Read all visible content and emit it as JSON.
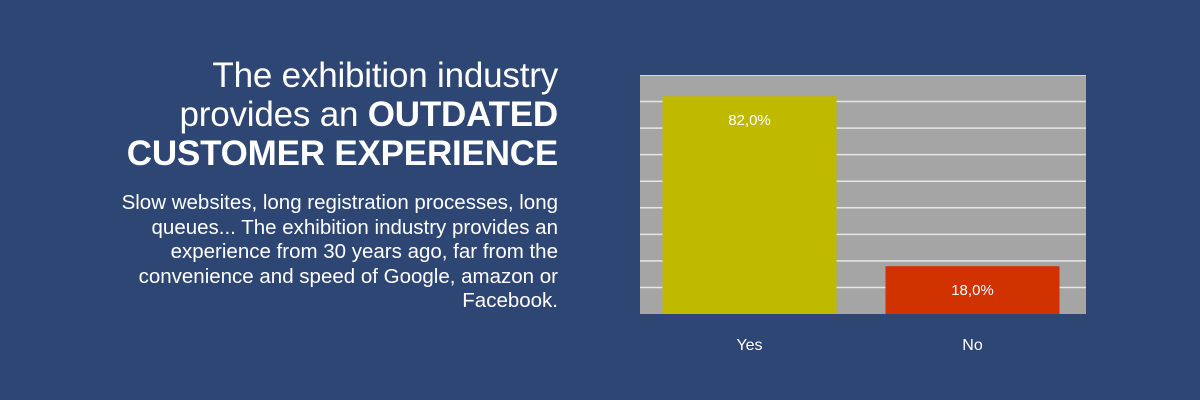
{
  "headline": {
    "line1": "The exhibition industry",
    "line2_light": "provides an ",
    "line2_bold": "OUTDATED",
    "line3_bold": "CUSTOMER EXPERIENCE"
  },
  "description": "Slow websites, long registration processes, long queues... The exhibition industry provides an experience from 30 years ago, far from the convenience and speed of Google, amazon or Facebook.",
  "colors": {
    "background": "#2e4674",
    "plot_background": "#a5a5a5",
    "gridline": "#e6e6e6"
  },
  "chart_data": {
    "type": "bar",
    "categories": [
      "Yes",
      "No"
    ],
    "values": [
      82.0,
      18.0
    ],
    "data_labels": [
      "82,0%",
      "18,0%"
    ],
    "colors": [
      "#bfba00",
      "#d03200"
    ],
    "ylim": [
      0,
      90
    ],
    "grid": true,
    "legend": "none"
  }
}
